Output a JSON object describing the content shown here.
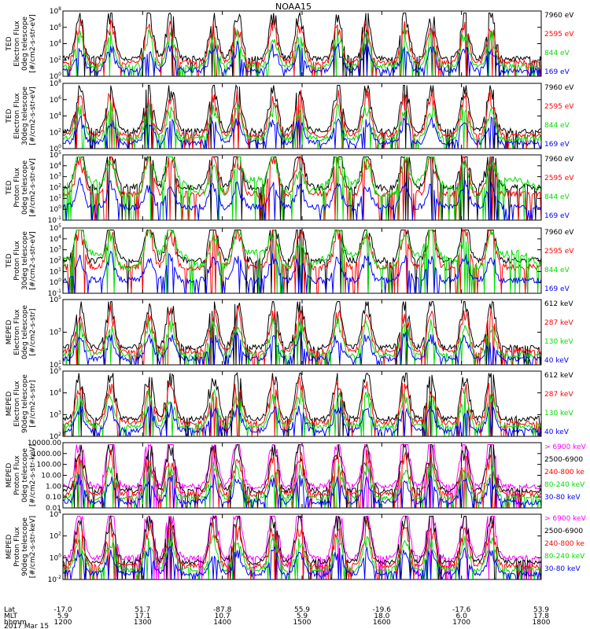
{
  "title": "NOAA15",
  "colors": {
    "black": "#000000",
    "red": "#ff0000",
    "green": "#00dd00",
    "blue": "#0000ff",
    "magenta": "#ff00ff"
  },
  "chart_data": [
    {
      "type": "line",
      "ylabel": [
        "TED",
        "Electron Flux",
        "0deg telescope",
        "[#/cm2-s-str-eV]"
      ],
      "yscale": "log",
      "yticks": [
        "10^0",
        "10^2",
        "10^4",
        "10^6",
        "10^8"
      ],
      "series": [
        {
          "name": "7960 eV",
          "color": "black"
        },
        {
          "name": "2595 eV",
          "color": "red"
        },
        {
          "name": "844 eV",
          "color": "green"
        },
        {
          "name": "169 eV",
          "color": "blue"
        }
      ]
    },
    {
      "type": "line",
      "ylabel": [
        "TED",
        "Electron Flux",
        "30deg telescope",
        "[#/cm2-s-str-eV]"
      ],
      "yscale": "log",
      "yticks": [
        "10^0",
        "10^2",
        "10^4",
        "10^6",
        "10^8"
      ],
      "series": [
        {
          "name": "7960 eV",
          "color": "black"
        },
        {
          "name": "2595 eV",
          "color": "red"
        },
        {
          "name": "844 eV",
          "color": "green"
        },
        {
          "name": "169 eV",
          "color": "blue"
        }
      ]
    },
    {
      "type": "line",
      "ylabel": [
        "TED",
        "Proton Flux",
        "0deg telescope",
        "[#/cm2-s-str-eV]"
      ],
      "yscale": "log",
      "yticks": [
        "10^-1",
        "10^0",
        "10^1",
        "10^2",
        "10^3",
        "10^4",
        "10^5"
      ],
      "series": [
        {
          "name": "7960 eV",
          "color": "black"
        },
        {
          "name": "2595 eV",
          "color": "red"
        },
        {
          "name": "844 eV",
          "color": "green"
        },
        {
          "name": "169 eV",
          "color": "blue"
        }
      ]
    },
    {
      "type": "line",
      "ylabel": [
        "TED",
        "Proton Flux",
        "30deg telescope",
        "[#/cm2-s-str-eV]"
      ],
      "yscale": "log",
      "yticks": [
        "10^-1",
        "10^0",
        "10^1",
        "10^2",
        "10^3",
        "10^4",
        "10^5"
      ],
      "series": [
        {
          "name": "7960 eV",
          "color": "black"
        },
        {
          "name": "2595 eV",
          "color": "red"
        },
        {
          "name": "844 eV",
          "color": "green"
        },
        {
          "name": "169 eV",
          "color": "blue"
        }
      ]
    },
    {
      "type": "line",
      "ylabel": [
        "MEPED",
        "Electron Flux",
        "0deg telescope",
        "[#/cm2-s-str]"
      ],
      "yscale": "log",
      "yticks": [
        "10^1",
        "10^3",
        "10^5"
      ],
      "series": [
        {
          "name": "612 keV",
          "color": "black"
        },
        {
          "name": "287 keV",
          "color": "red"
        },
        {
          "name": "130 keV",
          "color": "green"
        },
        {
          "name": "40 keV",
          "color": "blue"
        }
      ]
    },
    {
      "type": "line",
      "ylabel": [
        "MEPED",
        "Electron Flux",
        "90deg telescope",
        "[#/cm2-s-str]"
      ],
      "yscale": "log",
      "yticks": [
        "10^2",
        "10^3",
        "10^4",
        "10^5"
      ],
      "series": [
        {
          "name": "612 keV",
          "color": "black"
        },
        {
          "name": "287 keV",
          "color": "red"
        },
        {
          "name": "130 keV",
          "color": "green"
        },
        {
          "name": "40 keV",
          "color": "blue"
        }
      ]
    },
    {
      "type": "line",
      "ylabel": [
        "MEPED",
        "Proton Flux",
        "0deg telescope",
        "[#/cm2-s-str-keV]"
      ],
      "yscale": "log",
      "yticks": [
        "0.01",
        "0.10",
        "1.00",
        "10.00",
        "100.00",
        "1000.00",
        "10000.00"
      ],
      "series": [
        {
          "name": "> 6900 keV",
          "color": "magenta"
        },
        {
          "name": "2500-6900",
          "color": "black"
        },
        {
          "name": "240-800 ke",
          "color": "red"
        },
        {
          "name": "80-240 keV",
          "color": "green"
        },
        {
          "name": "30-80 keV",
          "color": "blue"
        }
      ]
    },
    {
      "type": "line",
      "ylabel": [
        "MEPED",
        "Proton Flux",
        "90deg telescope",
        "[#/cm2-s-str-keV]"
      ],
      "yscale": "log",
      "yticks": [
        "10^-2",
        "10^0",
        "10^2",
        "10^4"
      ],
      "series": [
        {
          "name": "> 6900 keV",
          "color": "magenta"
        },
        {
          "name": "2500-6900",
          "color": "black"
        },
        {
          "name": "240-800 ke",
          "color": "red"
        },
        {
          "name": "80-240 keV",
          "color": "green"
        },
        {
          "name": "30-80 keV",
          "color": "blue"
        }
      ]
    }
  ],
  "x_axis": {
    "row_labels": [
      "Lat",
      "MLT",
      "hhmm",
      "2017 Mar 15"
    ],
    "ticks": [
      {
        "lat": "-17.0",
        "mlt": "5.9",
        "hhmm": "1200"
      },
      {
        "lat": "51.7",
        "mlt": "17.1",
        "hhmm": "1300"
      },
      {
        "lat": "-87.8",
        "mlt": "10.7",
        "hhmm": "1400"
      },
      {
        "lat": "55.9",
        "mlt": "5.9",
        "hhmm": "1500"
      },
      {
        "lat": "-19.6",
        "mlt": "18.0",
        "hhmm": "1600"
      },
      {
        "lat": "-17.6",
        "mlt": "6.0",
        "hhmm": "1700"
      },
      {
        "lat": "53.9",
        "mlt": "17.8",
        "hhmm": "1800"
      }
    ]
  }
}
